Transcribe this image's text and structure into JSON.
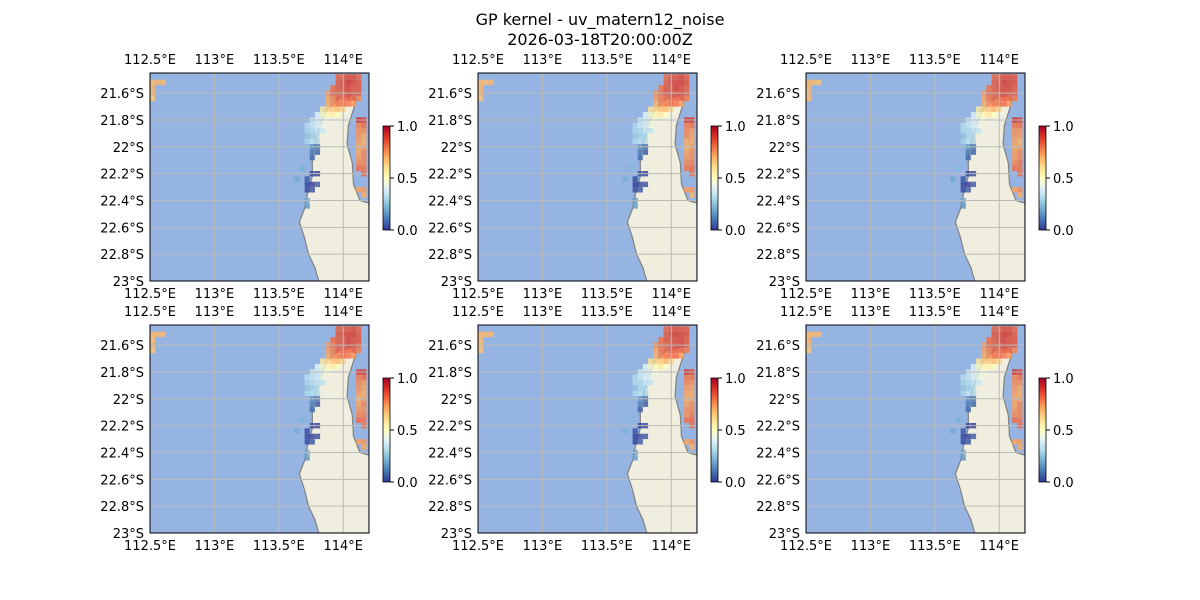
{
  "figure": {
    "title": "GP kernel - uv_matern12_noise",
    "subtitle": "2026-03-18T20:00:00Z"
  },
  "colors": {
    "ocean": "#96b4e2",
    "land": "#efeedf",
    "coastline": "#808080",
    "grid": "#bbbbbb",
    "colormap": "RdYlBu_r"
  },
  "chart_data": {
    "type": "heatmap",
    "panel_count": 6,
    "layout": {
      "rows": 2,
      "cols": 3
    },
    "x_axis": {
      "range": [
        112.5,
        114.2
      ],
      "ticks": [
        112.5,
        113.0,
        113.5,
        114.0
      ],
      "tick_labels": [
        "112.5°E",
        "113°E",
        "113.5°E",
        "114°E"
      ]
    },
    "y_axis": {
      "range": [
        -23.0,
        -21.45
      ],
      "ticks": [
        -21.6,
        -21.8,
        -22.0,
        -22.2,
        -22.4,
        -22.6,
        -22.8,
        -23.0
      ],
      "tick_labels": [
        "21.6°S",
        "21.8°S",
        "22°S",
        "22.2°S",
        "22.4°S",
        "22.6°S",
        "22.8°S",
        "23°S"
      ]
    },
    "colorbar": {
      "range": [
        0.0,
        1.0
      ],
      "ticks": [
        0.0,
        0.5,
        1.0
      ],
      "tick_labels": [
        "0.0",
        "0.5",
        "1.0"
      ]
    },
    "grid": true,
    "cells_lon_lat_value": [
      [
        112.52,
        -21.52,
        0.68
      ],
      [
        112.56,
        -21.52,
        0.68
      ],
      [
        112.6,
        -21.52,
        0.68
      ],
      [
        112.52,
        -21.56,
        0.68
      ],
      [
        112.52,
        -21.6,
        0.68
      ],
      [
        112.52,
        -21.64,
        0.66
      ],
      [
        113.96,
        -21.48,
        0.82
      ],
      [
        114.0,
        -21.48,
        0.84
      ],
      [
        114.04,
        -21.48,
        0.85
      ],
      [
        114.08,
        -21.48,
        0.86
      ],
      [
        114.12,
        -21.48,
        0.83
      ],
      [
        113.96,
        -21.52,
        0.84
      ],
      [
        114.0,
        -21.52,
        0.86
      ],
      [
        114.04,
        -21.52,
        0.88
      ],
      [
        114.08,
        -21.52,
        0.87
      ],
      [
        114.12,
        -21.52,
        0.85
      ],
      [
        113.92,
        -21.56,
        0.8
      ],
      [
        113.96,
        -21.56,
        0.84
      ],
      [
        114.0,
        -21.56,
        0.85
      ],
      [
        114.04,
        -21.56,
        0.87
      ],
      [
        114.08,
        -21.56,
        0.86
      ],
      [
        114.12,
        -21.56,
        0.84
      ],
      [
        113.88,
        -21.6,
        0.74
      ],
      [
        113.92,
        -21.6,
        0.8
      ],
      [
        113.96,
        -21.6,
        0.83
      ],
      [
        114.0,
        -21.6,
        0.84
      ],
      [
        114.04,
        -21.6,
        0.86
      ],
      [
        114.08,
        -21.6,
        0.85
      ],
      [
        114.12,
        -21.6,
        0.83
      ],
      [
        113.88,
        -21.64,
        0.72
      ],
      [
        113.92,
        -21.64,
        0.78
      ],
      [
        113.96,
        -21.64,
        0.82
      ],
      [
        114.0,
        -21.64,
        0.83
      ],
      [
        114.04,
        -21.64,
        0.84
      ],
      [
        114.08,
        -21.64,
        0.82
      ],
      [
        114.12,
        -21.64,
        0.78
      ],
      [
        113.88,
        -21.68,
        0.7
      ],
      [
        113.92,
        -21.68,
        0.76
      ],
      [
        113.96,
        -21.68,
        0.8
      ],
      [
        114.0,
        -21.68,
        0.82
      ],
      [
        114.04,
        -21.68,
        0.8
      ],
      [
        114.08,
        -21.68,
        0.74
      ],
      [
        113.84,
        -21.72,
        0.58
      ],
      [
        113.88,
        -21.72,
        0.62
      ],
      [
        113.92,
        -21.72,
        0.66
      ],
      [
        113.96,
        -21.72,
        0.68
      ],
      [
        114.0,
        -21.72,
        0.62
      ],
      [
        113.8,
        -21.76,
        0.4
      ],
      [
        113.84,
        -21.76,
        0.48
      ],
      [
        113.88,
        -21.76,
        0.54
      ],
      [
        113.92,
        -21.76,
        0.56
      ],
      [
        113.96,
        -21.76,
        0.5
      ],
      [
        113.76,
        -21.8,
        0.36
      ],
      [
        113.8,
        -21.8,
        0.4
      ],
      [
        113.84,
        -21.8,
        0.44
      ],
      [
        113.88,
        -21.8,
        0.46
      ],
      [
        113.72,
        -21.84,
        0.32
      ],
      [
        113.76,
        -21.84,
        0.36
      ],
      [
        113.8,
        -21.84,
        0.4
      ],
      [
        113.84,
        -21.84,
        0.42
      ],
      [
        113.72,
        -21.88,
        0.3
      ],
      [
        113.76,
        -21.88,
        0.32
      ],
      [
        113.8,
        -21.88,
        0.36
      ],
      [
        113.84,
        -21.88,
        0.34
      ],
      [
        113.72,
        -21.92,
        0.26
      ],
      [
        113.76,
        -21.92,
        0.3
      ],
      [
        113.8,
        -21.92,
        0.32
      ],
      [
        113.72,
        -21.96,
        0.3
      ],
      [
        113.76,
        -21.96,
        0.34
      ],
      [
        113.8,
        -21.96,
        0.3
      ],
      [
        113.76,
        -22.0,
        0.16
      ],
      [
        113.8,
        -22.0,
        0.1
      ],
      [
        113.76,
        -22.04,
        0.12
      ],
      [
        113.8,
        -22.04,
        0.06
      ],
      [
        113.76,
        -22.08,
        0.08
      ],
      [
        113.68,
        -22.16,
        0.22
      ],
      [
        113.72,
        -22.24,
        0.24
      ],
      [
        113.64,
        -22.24,
        0.2
      ],
      [
        113.72,
        -22.24,
        0.04
      ],
      [
        113.76,
        -22.2,
        0.03
      ],
      [
        113.8,
        -22.2,
        0.02
      ],
      [
        113.72,
        -22.28,
        0.02
      ],
      [
        113.76,
        -22.28,
        0.02
      ],
      [
        113.8,
        -22.28,
        0.05
      ],
      [
        113.72,
        -22.32,
        0.03
      ],
      [
        113.76,
        -22.32,
        0.05
      ],
      [
        113.72,
        -22.4,
        0.18
      ],
      [
        113.72,
        -22.44,
        0.16
      ],
      [
        114.12,
        -21.8,
        0.9
      ],
      [
        114.16,
        -21.8,
        0.88
      ],
      [
        114.12,
        -21.84,
        0.78
      ],
      [
        114.16,
        -21.84,
        0.8
      ],
      [
        114.12,
        -21.88,
        0.76
      ],
      [
        114.16,
        -21.88,
        0.74
      ],
      [
        114.12,
        -21.92,
        0.74
      ],
      [
        114.16,
        -21.92,
        0.72
      ],
      [
        114.12,
        -21.96,
        0.72
      ],
      [
        114.16,
        -21.96,
        0.7
      ],
      [
        114.12,
        -22.0,
        0.7
      ],
      [
        114.16,
        -22.0,
        0.72
      ],
      [
        114.12,
        -22.04,
        0.72
      ],
      [
        114.16,
        -22.04,
        0.76
      ],
      [
        114.12,
        -22.08,
        0.74
      ],
      [
        114.16,
        -22.08,
        0.76
      ],
      [
        114.12,
        -22.12,
        0.76
      ],
      [
        114.16,
        -22.12,
        0.78
      ],
      [
        114.12,
        -22.16,
        0.8
      ],
      [
        114.16,
        -22.16,
        0.8
      ],
      [
        114.16,
        -22.2,
        0.8
      ],
      [
        114.12,
        -22.32,
        0.72
      ],
      [
        114.16,
        -22.32,
        0.74
      ],
      [
        114.16,
        -22.36,
        0.7
      ]
    ]
  }
}
